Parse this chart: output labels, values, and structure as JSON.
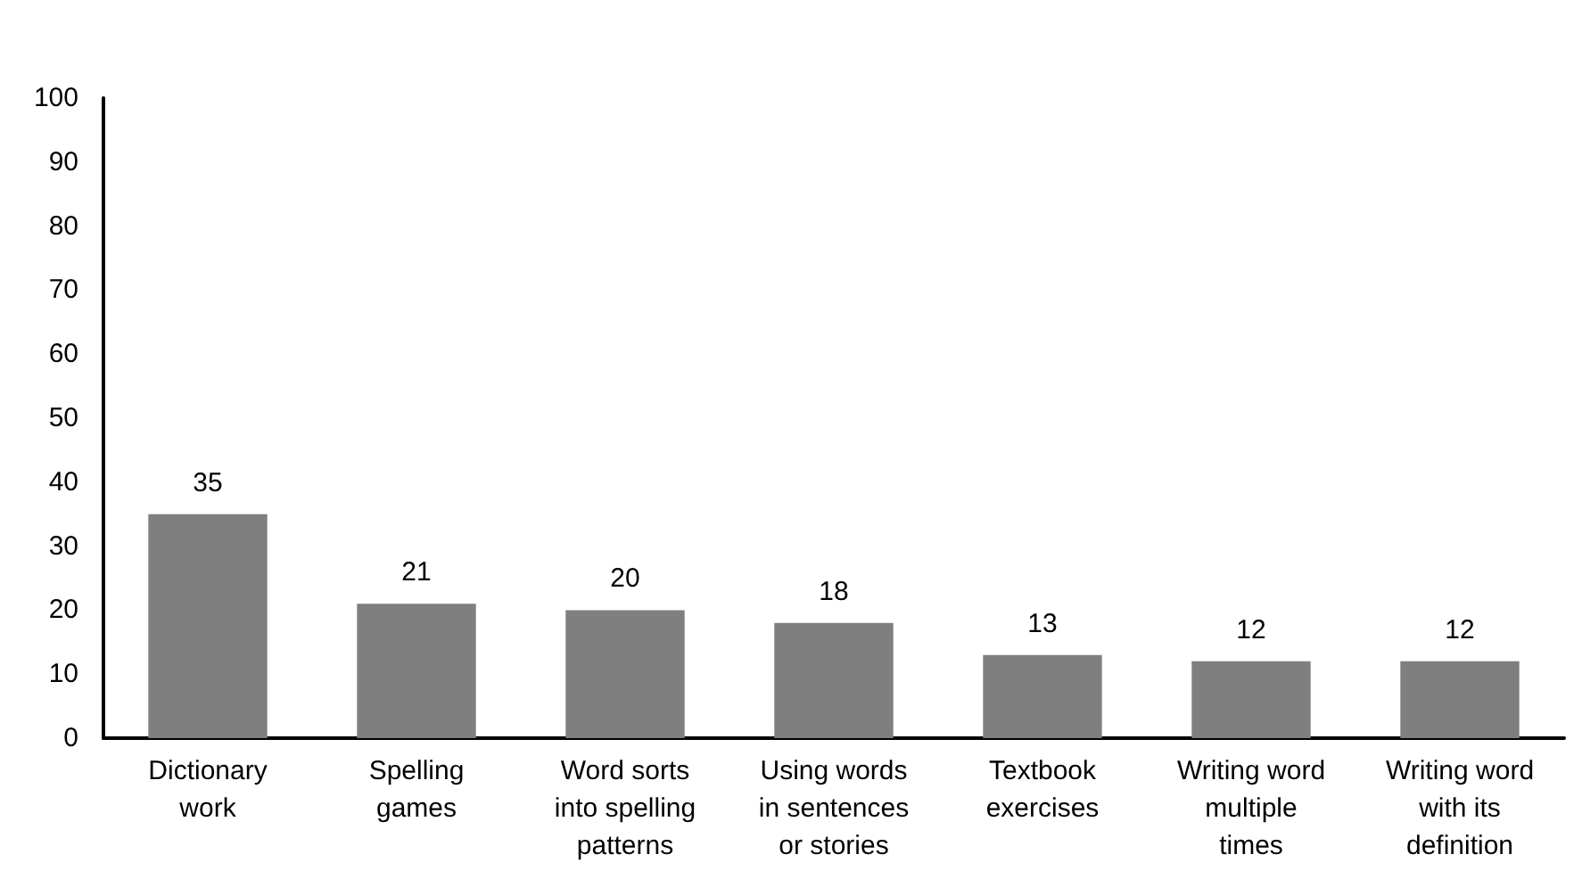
{
  "chart_data": {
    "type": "bar",
    "categories": [
      "Dictionary\nwork",
      "Spelling\ngames",
      "Word sorts\ninto spelling\npatterns",
      "Using words\nin sentences\nor stories",
      "Textbook\nexercises",
      "Writing word\nmultiple\ntimes",
      "Writing word\nwith its\ndefinition"
    ],
    "values": [
      35,
      21,
      20,
      18,
      13,
      12,
      12
    ],
    "color": "#7f7f7f",
    "ylim": [
      0,
      100
    ],
    "yticks": [
      0,
      10,
      20,
      30,
      40,
      50,
      60,
      70,
      80,
      90,
      100
    ],
    "data_labels": true,
    "grid": false
  }
}
